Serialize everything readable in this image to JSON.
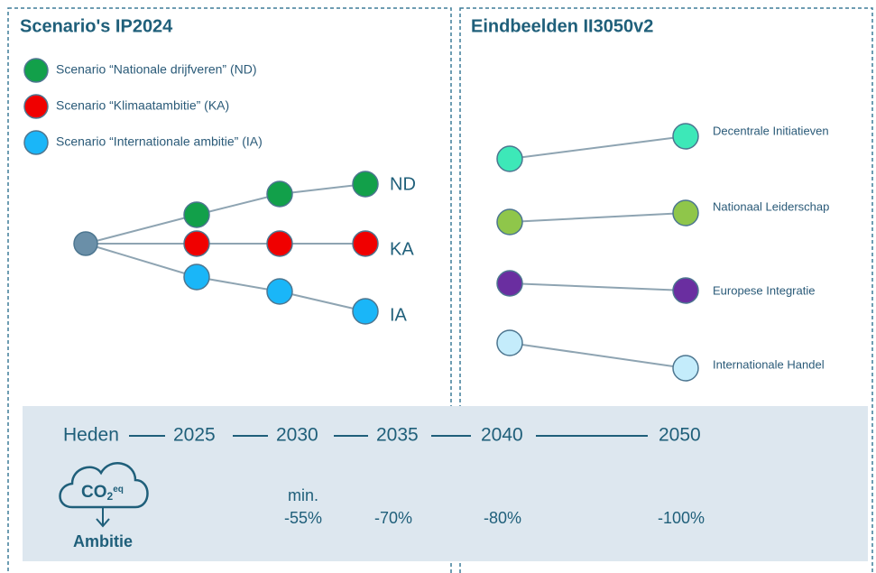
{
  "left_panel": {
    "title": "Scenario's IP2024",
    "legend": [
      "Scenario “Nationale drijfveren” (ND)",
      "Scenario “Klimaatambitie” (KA)",
      "Scenario “Internationale ambitie” (IA)"
    ],
    "branch_labels": [
      "ND",
      "KA",
      "IA"
    ]
  },
  "right_panel": {
    "title": "Eindbeelden II3050v2",
    "items": [
      "Decentrale Initiatieven",
      "Nationaal Leiderschap",
      "Europese Integratie",
      "Internationale Handel"
    ]
  },
  "timeline": {
    "labels": [
      "Heden",
      "2025",
      "2030",
      "2035",
      "2040",
      "2050"
    ],
    "icon": {
      "base": "CO",
      "sub": "2",
      "sup": "eq",
      "caption": "Ambitie"
    },
    "ambitions": {
      "prefix": "min.",
      "targets": [
        "-55%",
        "-70%",
        "-80%",
        "-100%"
      ]
    }
  }
}
